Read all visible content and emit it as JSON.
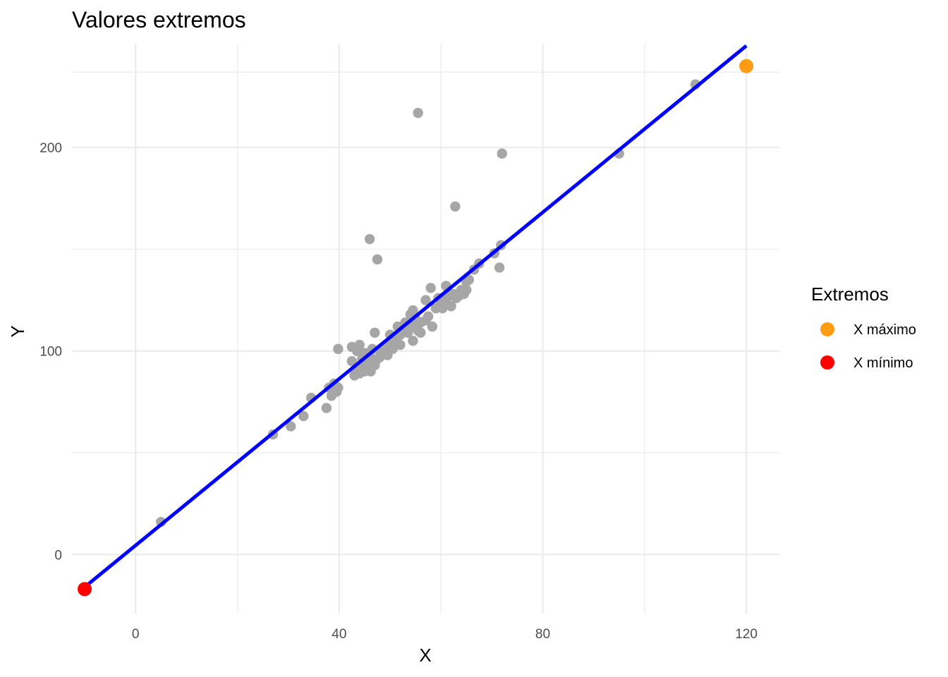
{
  "chart_data": {
    "type": "scatter",
    "title": "Valores extremos",
    "xlabel": "X",
    "ylabel": "Y",
    "xlim": [
      -12.5,
      126.5
    ],
    "ylim": [
      -29,
      251
    ],
    "x_major_ticks": [
      0,
      40,
      80,
      120
    ],
    "x_minor_ticks": [
      20,
      60,
      100
    ],
    "y_major_ticks": [
      0,
      100,
      200
    ],
    "y_minor_ticks": [
      50,
      150,
      237
    ],
    "grid": true,
    "colors": {
      "points": "#a6a6a6",
      "line": "#0000ff",
      "max": "#ff9c14",
      "min": "#ff0000",
      "grid": "#ebebeb"
    },
    "points": [
      {
        "x": 5,
        "y": 16
      },
      {
        "x": 27,
        "y": 59
      },
      {
        "x": 30.5,
        "y": 63
      },
      {
        "x": 33,
        "y": 68
      },
      {
        "x": 34.5,
        "y": 77
      },
      {
        "x": 37.5,
        "y": 72
      },
      {
        "x": 38,
        "y": 82
      },
      {
        "x": 38.5,
        "y": 78
      },
      {
        "x": 39,
        "y": 84
      },
      {
        "x": 39.5,
        "y": 80
      },
      {
        "x": 39.8,
        "y": 82
      },
      {
        "x": 39.8,
        "y": 101
      },
      {
        "x": 42.5,
        "y": 95
      },
      {
        "x": 42.5,
        "y": 102
      },
      {
        "x": 43,
        "y": 88
      },
      {
        "x": 43.5,
        "y": 91
      },
      {
        "x": 43.5,
        "y": 100
      },
      {
        "x": 44,
        "y": 103
      },
      {
        "x": 44,
        "y": 89
      },
      {
        "x": 44.5,
        "y": 93
      },
      {
        "x": 44.5,
        "y": 96
      },
      {
        "x": 45,
        "y": 99
      },
      {
        "x": 45,
        "y": 90
      },
      {
        "x": 45.5,
        "y": 94
      },
      {
        "x": 45.5,
        "y": 91
      },
      {
        "x": 46,
        "y": 98
      },
      {
        "x": 46,
        "y": 155
      },
      {
        "x": 46.2,
        "y": 90
      },
      {
        "x": 46.5,
        "y": 101
      },
      {
        "x": 46.5,
        "y": 94
      },
      {
        "x": 47,
        "y": 93
      },
      {
        "x": 47,
        "y": 109
      },
      {
        "x": 47.5,
        "y": 145
      },
      {
        "x": 47.5,
        "y": 96
      },
      {
        "x": 48,
        "y": 100
      },
      {
        "x": 48,
        "y": 97
      },
      {
        "x": 48.5,
        "y": 99
      },
      {
        "x": 49,
        "y": 102
      },
      {
        "x": 49.5,
        "y": 98
      },
      {
        "x": 50,
        "y": 108
      },
      {
        "x": 50,
        "y": 104
      },
      {
        "x": 50.5,
        "y": 101
      },
      {
        "x": 51,
        "y": 106
      },
      {
        "x": 51.5,
        "y": 112
      },
      {
        "x": 52,
        "y": 103
      },
      {
        "x": 52,
        "y": 108
      },
      {
        "x": 52.5,
        "y": 110
      },
      {
        "x": 53,
        "y": 114
      },
      {
        "x": 53.5,
        "y": 109
      },
      {
        "x": 54,
        "y": 112
      },
      {
        "x": 54,
        "y": 118
      },
      {
        "x": 54.5,
        "y": 105
      },
      {
        "x": 54.5,
        "y": 120
      },
      {
        "x": 55,
        "y": 113
      },
      {
        "x": 55,
        "y": 116
      },
      {
        "x": 55.5,
        "y": 217
      },
      {
        "x": 55.5,
        "y": 110
      },
      {
        "x": 56,
        "y": 114
      },
      {
        "x": 56,
        "y": 109
      },
      {
        "x": 57,
        "y": 125
      },
      {
        "x": 57,
        "y": 115
      },
      {
        "x": 57.5,
        "y": 117
      },
      {
        "x": 58,
        "y": 131
      },
      {
        "x": 58.3,
        "y": 112
      },
      {
        "x": 59,
        "y": 121
      },
      {
        "x": 59.5,
        "y": 126
      },
      {
        "x": 60,
        "y": 124
      },
      {
        "x": 60.3,
        "y": 121
      },
      {
        "x": 61,
        "y": 132
      },
      {
        "x": 61,
        "y": 125
      },
      {
        "x": 61.5,
        "y": 127
      },
      {
        "x": 62,
        "y": 122
      },
      {
        "x": 62.5,
        "y": 128
      },
      {
        "x": 62.8,
        "y": 171
      },
      {
        "x": 63,
        "y": 126
      },
      {
        "x": 63.5,
        "y": 127
      },
      {
        "x": 64,
        "y": 130
      },
      {
        "x": 64.5,
        "y": 128
      },
      {
        "x": 65,
        "y": 134
      },
      {
        "x": 65,
        "y": 130
      },
      {
        "x": 65.5,
        "y": 135
      },
      {
        "x": 66.5,
        "y": 140
      },
      {
        "x": 67.5,
        "y": 143
      },
      {
        "x": 70.5,
        "y": 148
      },
      {
        "x": 71.5,
        "y": 141
      },
      {
        "x": 71.8,
        "y": 152
      },
      {
        "x": 72,
        "y": 197
      },
      {
        "x": 95,
        "y": 197
      },
      {
        "x": 110,
        "y": 231
      }
    ],
    "extremes": [
      {
        "name": "X máximo",
        "x": 120,
        "y": 240
      },
      {
        "name": "X mínimo",
        "x": -10,
        "y": -17
      }
    ],
    "regression_line": {
      "x": [
        -10,
        120
      ],
      "y": [
        -16,
        250
      ]
    },
    "legend": {
      "title": "Extremos",
      "position": "right",
      "items": [
        {
          "label": "X máximo",
          "color": "#ff9c14"
        },
        {
          "label": "X mínimo",
          "color": "#ff0000"
        }
      ]
    }
  }
}
